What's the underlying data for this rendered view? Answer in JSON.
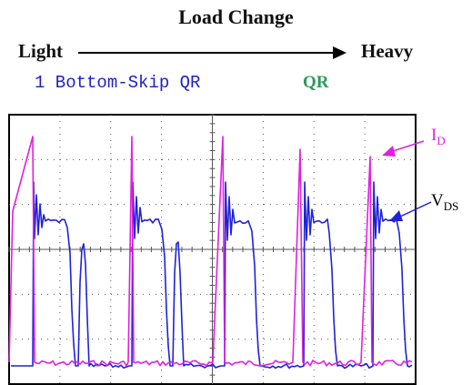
{
  "title": "Load Change",
  "axis": {
    "left_label": "Light",
    "right_label": "Heavy"
  },
  "modes": [
    {
      "label": "1 Bottom-Skip QR",
      "color": "#2020c8"
    },
    {
      "label": "QR",
      "color": "#2a9a58"
    }
  ],
  "traces": {
    "id": {
      "label_main": "I",
      "label_sub": "D",
      "color": "#e020e0"
    },
    "vds": {
      "label_main": "V",
      "label_sub": "DS",
      "color": "#1f22d8"
    }
  },
  "colors": {
    "grid": "#555555",
    "frame": "#000000",
    "arrow": "#000000"
  }
}
